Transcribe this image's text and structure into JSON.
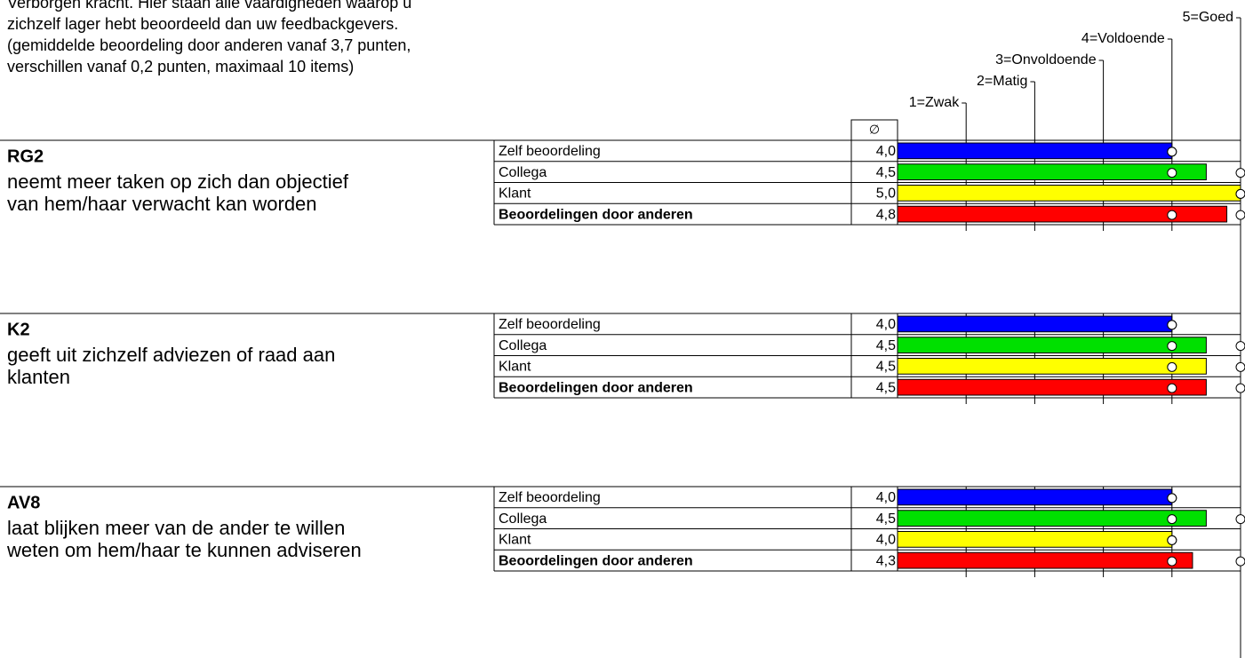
{
  "intro": [
    "Verborgen kracht. Hier staan alle vaardigheden waarop u",
    "zichzelf lager hebt beoordeeld dan uw feedbackgevers.",
    "(gemiddelde beoordeling door anderen vanaf 3,7 punten,",
    "verschillen vanaf 0,2 punten, maximaal 10 items)"
  ],
  "scale": {
    "xlim": [
      0,
      5
    ],
    "ticks": [
      {
        "value": 1,
        "label": "1=Zwak"
      },
      {
        "value": 2,
        "label": "2=Matig"
      },
      {
        "value": 3,
        "label": "3=Onvoldoende"
      },
      {
        "value": 4,
        "label": "4=Voldoende"
      },
      {
        "value": 5,
        "label": "5=Goed"
      }
    ]
  },
  "avg_header": "∅",
  "items": [
    {
      "code": "RG2",
      "description": [
        "neemt meer taken op zich dan objectief",
        "van hem/haar verwacht kan worden"
      ],
      "rows": [
        {
          "label": "Zelf beoordeling",
          "value": 4.0,
          "value_label": "4,0",
          "min": 4,
          "max": 4,
          "color": "#0000ff",
          "bold": false
        },
        {
          "label": "Collega",
          "value": 4.5,
          "value_label": "4,5",
          "min": 4,
          "max": 5,
          "color": "#00e000",
          "bold": false
        },
        {
          "label": "Klant",
          "value": 5.0,
          "value_label": "5,0",
          "min": 5,
          "max": 5,
          "color": "#ffff00",
          "bold": false
        },
        {
          "label": "Beoordelingen door anderen",
          "value": 4.8,
          "value_label": "4,8",
          "min": 4,
          "max": 5,
          "color": "#ff0000",
          "bold": true
        }
      ]
    },
    {
      "code": "K2",
      "description": [
        "geeft uit zichzelf adviezen of raad aan",
        "klanten"
      ],
      "rows": [
        {
          "label": "Zelf beoordeling",
          "value": 4.0,
          "value_label": "4,0",
          "min": 4,
          "max": 4,
          "color": "#0000ff",
          "bold": false
        },
        {
          "label": "Collega",
          "value": 4.5,
          "value_label": "4,5",
          "min": 4,
          "max": 5,
          "color": "#00e000",
          "bold": false
        },
        {
          "label": "Klant",
          "value": 4.5,
          "value_label": "4,5",
          "min": 4,
          "max": 5,
          "color": "#ffff00",
          "bold": false
        },
        {
          "label": "Beoordelingen door anderen",
          "value": 4.5,
          "value_label": "4,5",
          "min": 4,
          "max": 5,
          "color": "#ff0000",
          "bold": true
        }
      ]
    },
    {
      "code": "AV8",
      "description": [
        "laat blijken meer van de ander te willen",
        "weten om hem/haar te kunnen adviseren"
      ],
      "rows": [
        {
          "label": "Zelf beoordeling",
          "value": 4.0,
          "value_label": "4,0",
          "min": 4,
          "max": 4,
          "color": "#0000ff",
          "bold": false
        },
        {
          "label": "Collega",
          "value": 4.5,
          "value_label": "4,5",
          "min": 4,
          "max": 5,
          "color": "#00e000",
          "bold": false
        },
        {
          "label": "Klant",
          "value": 4.0,
          "value_label": "4,0",
          "min": 4,
          "max": 4,
          "color": "#ffff00",
          "bold": false
        },
        {
          "label": "Beoordelingen door anderen",
          "value": 4.3,
          "value_label": "4,3",
          "min": 4,
          "max": 5,
          "color": "#ff0000",
          "bold": true
        }
      ]
    }
  ]
}
